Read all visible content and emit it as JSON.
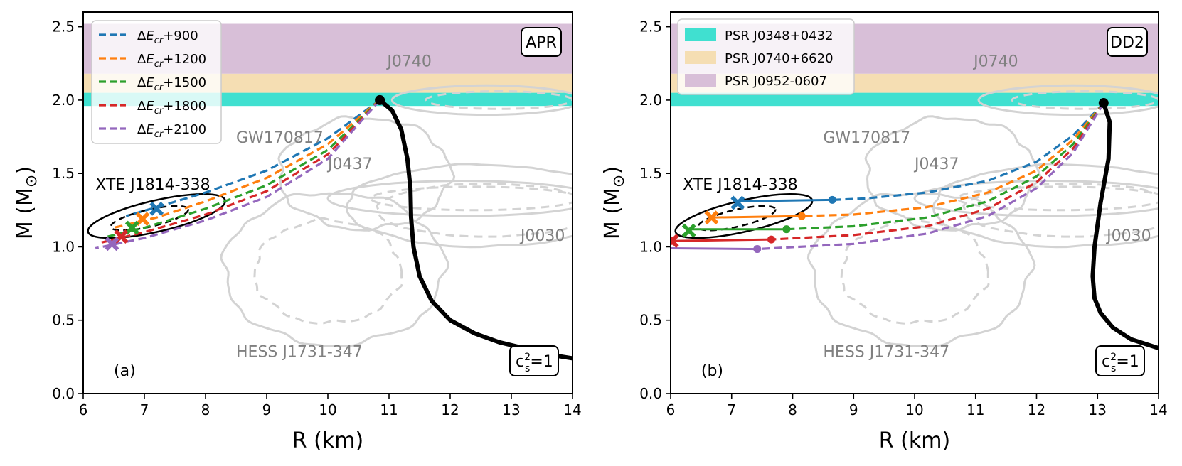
{
  "chart_data": [
    {
      "type": "line",
      "panel_label": "(a)",
      "model_label": "APR",
      "xlabel": "R (km)",
      "ylabel": "M (M",
      "ylabel_sub": "⊙",
      "ylabel_close": ")",
      "xlim": [
        6,
        14
      ],
      "ylim": [
        0,
        2.6
      ],
      "xticks": [
        "6",
        "7",
        "8",
        "9",
        "10",
        "11",
        "12",
        "13",
        "14"
      ],
      "yticks": [
        "0.0",
        "0.5",
        "1.0",
        "1.5",
        "2.0",
        "2.5"
      ],
      "bands": [
        {
          "name": "PSR J0348+0432",
          "lo": 1.96,
          "hi": 2.05,
          "color": "#40e0d0"
        },
        {
          "name": "PSR J0740+6620",
          "lo": 2.05,
          "hi": 2.18,
          "color": "#f5deb3"
        },
        {
          "name": "PSR J0952-0607",
          "lo": 2.18,
          "hi": 2.52,
          "color": "#d8bfd8"
        }
      ],
      "annotations_grey": [
        {
          "text": "J0740",
          "x": 10.97,
          "y": 2.23
        },
        {
          "text": "GW170817",
          "x": 8.5,
          "y": 1.71
        },
        {
          "text": "J0437",
          "x": 10.0,
          "y": 1.53
        },
        {
          "text": "J0030",
          "x": 13.15,
          "y": 1.04
        },
        {
          "text": "HESS J1731-347",
          "x": 8.5,
          "y": 0.25
        }
      ],
      "annotations_black": [
        {
          "text": "XTE J1814-338",
          "x": 6.2,
          "y": 1.4
        }
      ],
      "cs_label": "c",
      "cs_sub": "s",
      "cs_sup": "2",
      "cs_rhs": "=1",
      "main_curve": {
        "color": "#000000",
        "x": [
          10.85,
          11.05,
          11.2,
          11.3,
          11.35,
          11.36,
          11.4,
          11.5,
          11.7,
          12.0,
          12.4,
          12.8,
          13.3,
          13.7,
          14.0
        ],
        "y": [
          2.0,
          1.93,
          1.8,
          1.6,
          1.4,
          1.2,
          1.0,
          0.8,
          0.63,
          0.5,
          0.41,
          0.35,
          0.3,
          0.26,
          0.24
        ]
      },
      "series": [
        {
          "name": "ΔEcr+900",
          "color": "#1f77b4",
          "x": [
            10.85,
            10.0,
            9.0,
            8.0,
            7.2,
            6.7
          ],
          "y": [
            2.0,
            1.74,
            1.52,
            1.37,
            1.27,
            1.21
          ],
          "marker": {
            "x": 7.2,
            "y": 1.26
          }
        },
        {
          "name": "ΔEcr+1200",
          "color": "#ff7f0e",
          "x": [
            10.85,
            10.0,
            9.0,
            8.0,
            7.2,
            6.5
          ],
          "y": [
            2.0,
            1.7,
            1.47,
            1.31,
            1.2,
            1.13
          ],
          "marker": {
            "x": 6.97,
            "y": 1.19
          }
        },
        {
          "name": "ΔEcr+1500",
          "color": "#2ca02c",
          "x": [
            10.85,
            10.0,
            9.0,
            8.0,
            7.0,
            6.4
          ],
          "y": [
            2.0,
            1.66,
            1.42,
            1.26,
            1.13,
            1.07
          ],
          "marker": {
            "x": 6.8,
            "y": 1.13
          }
        },
        {
          "name": "ΔEcr+1800",
          "color": "#d62728",
          "x": [
            10.85,
            10.0,
            9.0,
            8.0,
            7.0,
            6.3
          ],
          "y": [
            2.0,
            1.63,
            1.38,
            1.22,
            1.1,
            1.03
          ],
          "marker": {
            "x": 6.62,
            "y": 1.07
          }
        },
        {
          "name": "ΔEcr+2100",
          "color": "#9467bd",
          "x": [
            10.85,
            10.0,
            9.0,
            8.0,
            7.0,
            6.2
          ],
          "y": [
            2.0,
            1.6,
            1.34,
            1.18,
            1.06,
            0.99
          ],
          "marker": {
            "x": 6.47,
            "y": 1.02
          }
        }
      ],
      "solid_segments": [],
      "legend": "top-left"
    },
    {
      "type": "line",
      "panel_label": "(b)",
      "model_label": "DD2",
      "xlabel": "R (km)",
      "ylabel": "M (M",
      "ylabel_sub": "⊙",
      "ylabel_close": ")",
      "xlim": [
        6,
        14
      ],
      "ylim": [
        0,
        2.6
      ],
      "xticks": [
        "6",
        "7",
        "8",
        "9",
        "10",
        "11",
        "12",
        "13",
        "14"
      ],
      "yticks": [
        "0.0",
        "0.5",
        "1.0",
        "1.5",
        "2.0",
        "2.5"
      ],
      "bands": [
        {
          "name": "PSR J0348+0432",
          "lo": 1.96,
          "hi": 2.05,
          "color": "#40e0d0"
        },
        {
          "name": "PSR J0740+6620",
          "lo": 2.05,
          "hi": 2.18,
          "color": "#f5deb3"
        },
        {
          "name": "PSR J0952-0607",
          "lo": 2.18,
          "hi": 2.52,
          "color": "#d8bfd8"
        }
      ],
      "annotations_grey": [
        {
          "text": "J0740",
          "x": 10.97,
          "y": 2.23
        },
        {
          "text": "GW170817",
          "x": 8.5,
          "y": 1.71
        },
        {
          "text": "J0437",
          "x": 10.0,
          "y": 1.53
        },
        {
          "text": "J0030",
          "x": 13.15,
          "y": 1.04
        },
        {
          "text": "HESS J1731-347",
          "x": 8.5,
          "y": 0.25
        }
      ],
      "annotations_black": [
        {
          "text": "XTE J1814-338",
          "x": 6.2,
          "y": 1.4
        }
      ],
      "cs_label": "c",
      "cs_sub": "s",
      "cs_sup": "2",
      "cs_rhs": "=1",
      "main_curve": {
        "color": "#000000",
        "x": [
          13.1,
          13.2,
          13.18,
          13.05,
          12.95,
          12.92,
          12.95,
          13.05,
          13.25,
          13.55,
          14.0
        ],
        "y": [
          1.98,
          1.85,
          1.6,
          1.3,
          1.0,
          0.8,
          0.65,
          0.55,
          0.45,
          0.37,
          0.31
        ]
      },
      "series": [
        {
          "name": "ΔEcr+900",
          "color": "#1f77b4",
          "x": [
            13.1,
            12.6,
            12.0,
            11.2,
            10.2,
            9.2,
            8.65
          ],
          "y": [
            1.98,
            1.76,
            1.58,
            1.45,
            1.37,
            1.33,
            1.32
          ],
          "marker": {
            "x": 7.1,
            "y": 1.3
          }
        },
        {
          "name": "ΔEcr+1200",
          "color": "#ff7f0e",
          "x": [
            13.1,
            12.6,
            12.0,
            11.2,
            10.2,
            9.0,
            8.15
          ],
          "y": [
            1.98,
            1.73,
            1.52,
            1.37,
            1.27,
            1.22,
            1.21
          ],
          "marker": {
            "x": 6.67,
            "y": 1.2
          }
        },
        {
          "name": "ΔEcr+1500",
          "color": "#2ca02c",
          "x": [
            13.1,
            12.6,
            12.0,
            11.2,
            10.2,
            9.0,
            7.9
          ],
          "y": [
            1.98,
            1.7,
            1.48,
            1.31,
            1.2,
            1.14,
            1.12
          ],
          "marker": {
            "x": 6.3,
            "y": 1.11
          }
        },
        {
          "name": "ΔEcr+1800",
          "color": "#d62728",
          "x": [
            13.1,
            12.6,
            12.0,
            11.2,
            10.2,
            9.0,
            7.65
          ],
          "y": [
            1.98,
            1.67,
            1.44,
            1.26,
            1.14,
            1.08,
            1.05
          ],
          "marker": {
            "x": 6.02,
            "y": 1.04
          }
        },
        {
          "name": "ΔEcr+2100",
          "color": "#9467bd",
          "x": [
            13.1,
            12.6,
            12.0,
            11.2,
            10.2,
            9.0,
            7.42
          ],
          "y": [
            1.98,
            1.64,
            1.4,
            1.21,
            1.09,
            1.02,
            0.985
          ],
          "marker": null
        }
      ],
      "solid_segments": [
        {
          "color": "#1f77b4",
          "x": [
            7.1,
            8.65
          ],
          "y": [
            1.31,
            1.32
          ]
        },
        {
          "color": "#ff7f0e",
          "x": [
            6.67,
            8.15
          ],
          "y": [
            1.2,
            1.21
          ]
        },
        {
          "color": "#2ca02c",
          "x": [
            6.3,
            7.9
          ],
          "y": [
            1.12,
            1.12
          ]
        },
        {
          "color": "#d62728",
          "x": [
            6.02,
            7.65
          ],
          "y": [
            1.04,
            1.05
          ]
        },
        {
          "color": "#9467bd",
          "x": [
            6.0,
            7.42
          ],
          "y": [
            0.99,
            0.985
          ]
        }
      ],
      "legend": "top-left"
    }
  ],
  "legend_a": [
    {
      "prefix": "Δ",
      "symbol": "E",
      "sub": "cr",
      "suffix": "+900",
      "color": "#1f77b4"
    },
    {
      "prefix": "Δ",
      "symbol": "E",
      "sub": "cr",
      "suffix": "+1200",
      "color": "#ff7f0e"
    },
    {
      "prefix": "Δ",
      "symbol": "E",
      "sub": "cr",
      "suffix": "+1500",
      "color": "#2ca02c"
    },
    {
      "prefix": "Δ",
      "symbol": "E",
      "sub": "cr",
      "suffix": "+1800",
      "color": "#d62728"
    },
    {
      "prefix": "Δ",
      "symbol": "E",
      "sub": "cr",
      "suffix": "+2100",
      "color": "#9467bd"
    }
  ],
  "legend_b": [
    {
      "label": "PSR J0348+0432",
      "color": "#40e0d0"
    },
    {
      "label": "PSR J0740+6620",
      "color": "#f5deb3"
    },
    {
      "label": "PSR J0952-0607",
      "color": "#d8bfd8"
    }
  ]
}
